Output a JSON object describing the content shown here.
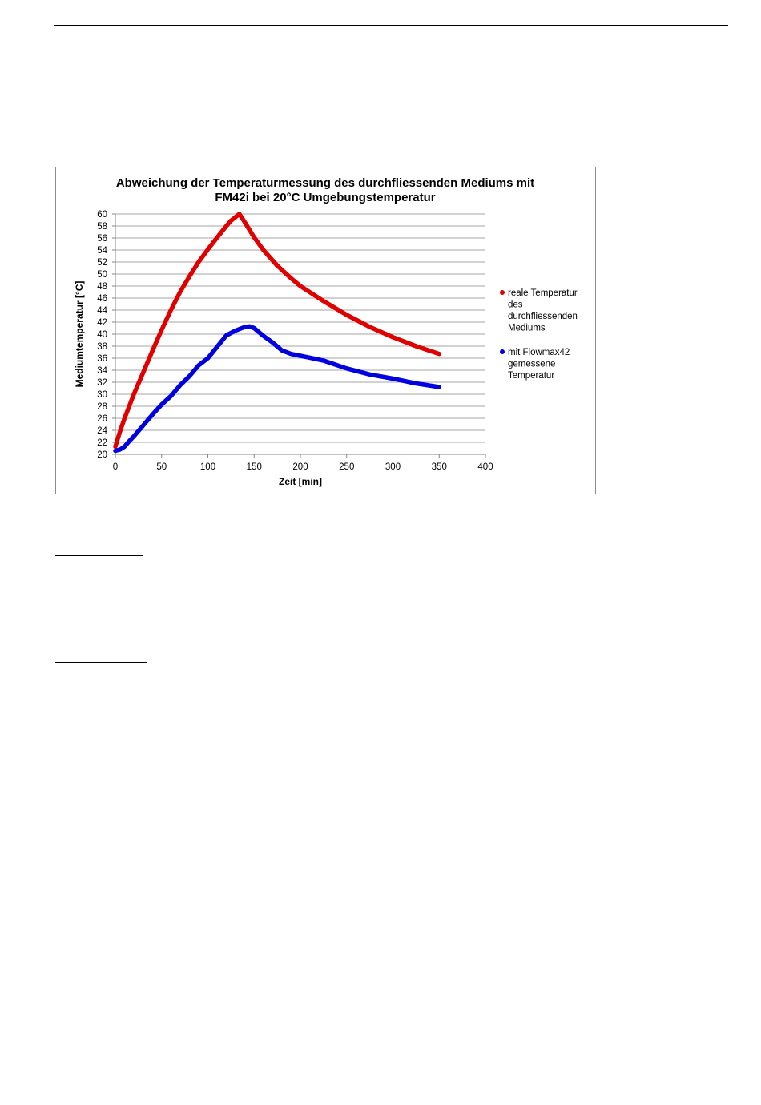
{
  "page": {
    "header_rule": true
  },
  "chart_data": {
    "type": "line",
    "title_lines": [
      "Abweichung der Temperaturmessung des durchfliessenden Mediums mit",
      "FM42i bei 20°C Umgebungstemperatur"
    ],
    "xlabel": "Zeit [min]",
    "ylabel": "Mediumtemperatur [°C]",
    "xlim": [
      0,
      400
    ],
    "ylim": [
      20,
      60
    ],
    "xticks": [
      0,
      50,
      100,
      150,
      200,
      250,
      300,
      350,
      400
    ],
    "yticks": [
      20,
      22,
      24,
      26,
      28,
      30,
      32,
      34,
      36,
      38,
      40,
      42,
      44,
      46,
      48,
      50,
      52,
      54,
      56,
      58,
      60
    ],
    "grid": "horizontal",
    "legend_position": "right",
    "series": [
      {
        "name_lines": [
          "reale Temperatur",
          "des",
          "durchfliessenden",
          "Mediums"
        ],
        "color": "#e00000",
        "x": [
          0,
          5,
          10,
          15,
          20,
          25,
          30,
          40,
          50,
          60,
          70,
          80,
          90,
          100,
          110,
          120,
          125,
          130,
          134,
          140,
          150,
          160,
          175,
          190,
          200,
          225,
          250,
          275,
          300,
          325,
          350
        ],
        "y": [
          21.3,
          23.8,
          26.0,
          28.0,
          30.0,
          31.8,
          33.6,
          37.2,
          40.7,
          44.0,
          47.0,
          49.6,
          52.0,
          54.1,
          56.1,
          58.0,
          58.9,
          59.5,
          60.0,
          58.6,
          56.1,
          54.0,
          51.4,
          49.3,
          48.0,
          45.5,
          43.2,
          41.2,
          39.5,
          38.0,
          36.7
        ]
      },
      {
        "name_lines": [
          "mit Flowmax42",
          "gemessene",
          "Temperatur"
        ],
        "color": "#0000e0",
        "x": [
          0,
          5,
          10,
          15,
          20,
          30,
          40,
          50,
          60,
          70,
          80,
          90,
          100,
          110,
          120,
          130,
          140,
          145,
          150,
          160,
          170,
          180,
          190,
          200,
          225,
          250,
          275,
          300,
          325,
          350
        ],
        "y": [
          20.6,
          20.8,
          21.3,
          22.2,
          23.0,
          24.8,
          26.6,
          28.3,
          29.7,
          31.5,
          33.0,
          34.8,
          36.0,
          37.9,
          39.8,
          40.6,
          41.2,
          41.3,
          41.0,
          39.7,
          38.6,
          37.3,
          36.7,
          36.4,
          35.6,
          34.3,
          33.3,
          32.6,
          31.8,
          31.2
        ]
      }
    ]
  }
}
